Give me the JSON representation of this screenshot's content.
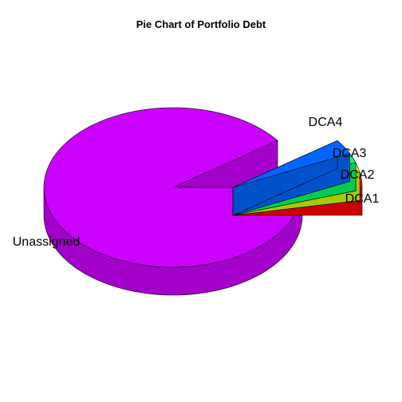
{
  "chart_data": {
    "type": "pie",
    "style": "3d-exploded",
    "title": "Pie Chart of Portfolio Debt",
    "slices": [
      {
        "label": "DCA1",
        "value": 3.0,
        "color": "#ff0000"
      },
      {
        "label": "DCA2",
        "value": 2.0,
        "color": "#ccff00"
      },
      {
        "label": "DCA3",
        "value": 2.0,
        "color": "#00ff66"
      },
      {
        "label": "DCA4",
        "value": 3.0,
        "color": "#0066ff"
      },
      {
        "label": "Unassigned",
        "value": 90.0,
        "color": "#cc00ff"
      }
    ]
  }
}
